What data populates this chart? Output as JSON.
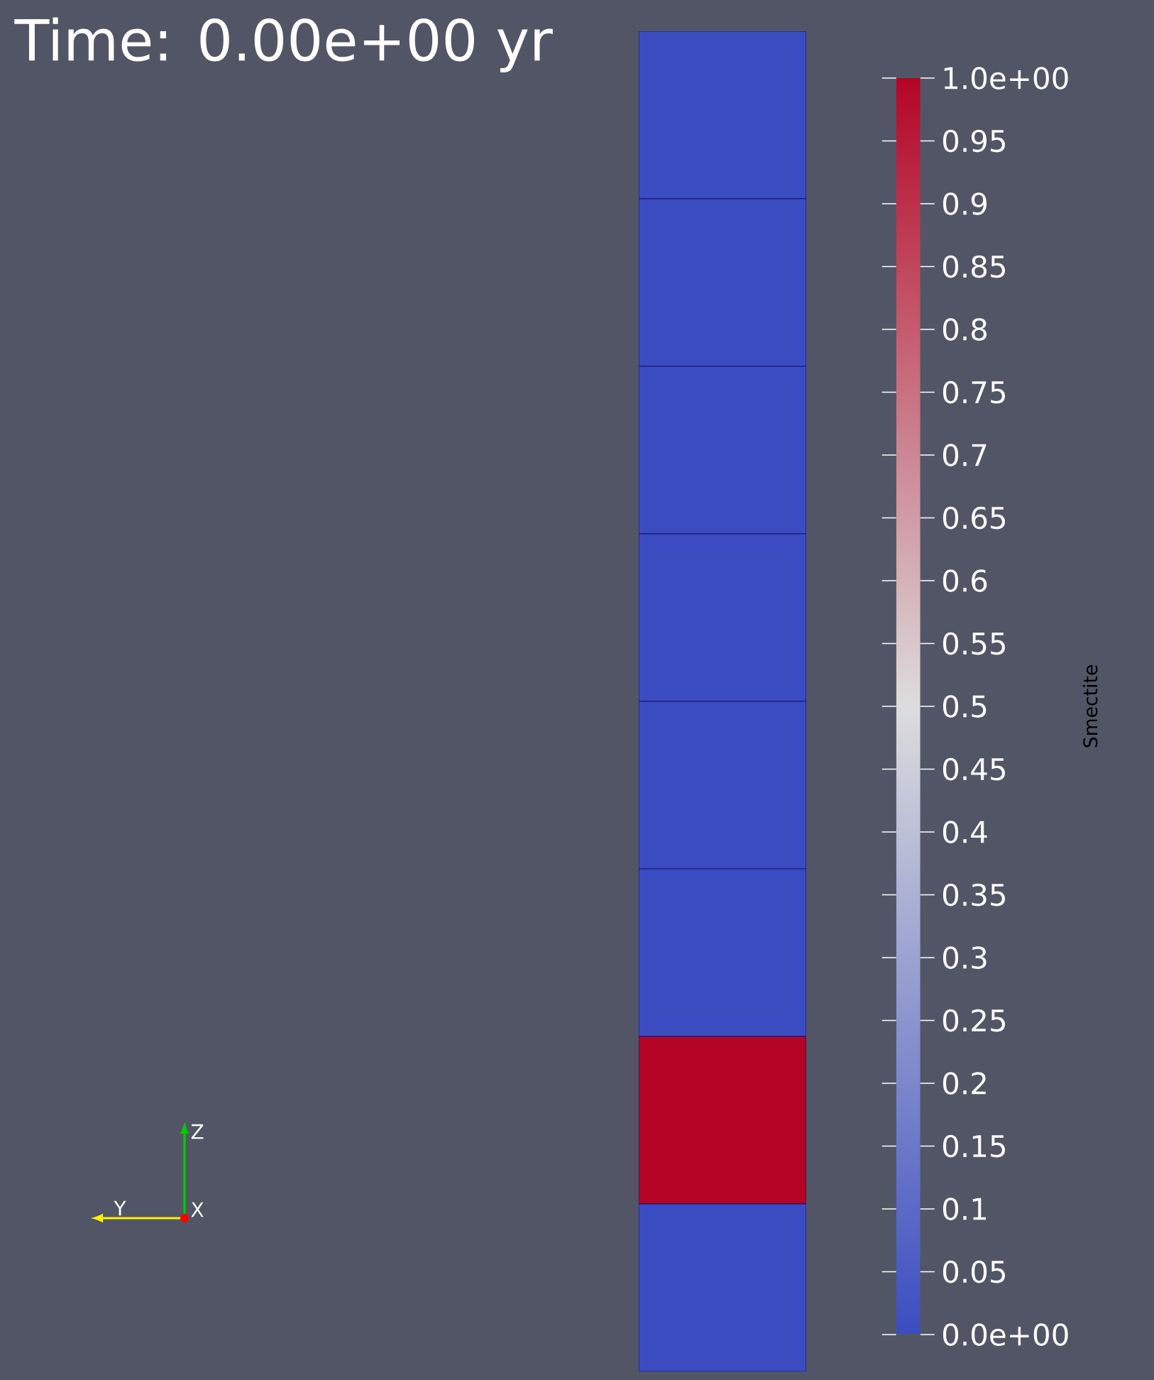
{
  "chart_data": {
    "type": "heatmap",
    "title": "Time: 0.00e+00 yr",
    "categories": [
      null
    ],
    "y_categories": [
      null,
      null,
      null,
      null,
      null,
      null,
      null,
      null
    ],
    "cells": [
      [
        0
      ],
      [
        0
      ],
      [
        0
      ],
      [
        0
      ],
      [
        0
      ],
      [
        0
      ],
      [
        1
      ],
      [
        0
      ]
    ],
    "clabel": "Smectite",
    "clim": [
      0,
      1
    ],
    "cticks": [
      {
        "value": 0,
        "label": "0.0e+00"
      },
      0.05,
      0.1,
      0.15,
      0.2,
      0.25,
      0.3,
      0.35,
      0.4,
      0.45,
      0.5,
      0.55,
      0.6,
      0.65,
      0.7,
      0.75,
      0.8,
      0.85,
      0.9,
      0.95,
      {
        "value": 1,
        "label": "1.0e+00"
      }
    ],
    "annotations": [
      "Z",
      "Y",
      "X"
    ]
  }
}
